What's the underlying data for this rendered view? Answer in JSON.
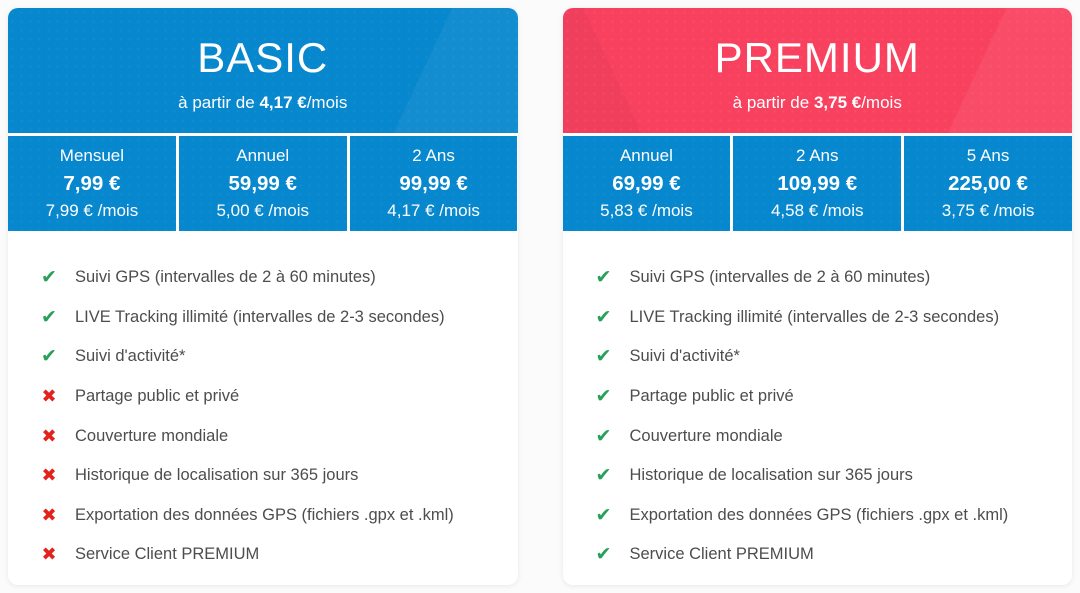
{
  "colors": {
    "blue": "#0787cd",
    "pink": "#f8415f",
    "green": "#27a05a",
    "red": "#e2231d",
    "text": "#4d4d4d",
    "page_bg": "#fbfbfb"
  },
  "icons": {
    "check": "✔",
    "cross": "✖"
  },
  "plans": [
    {
      "id": "basic",
      "name": "BASIC",
      "tagline": {
        "prefix": "à partir de ",
        "price": "4,17 €",
        "suffix": "/mois"
      },
      "tiers": [
        {
          "period": "Mensuel",
          "price": "7,99 €",
          "monthly": "7,99 € /mois"
        },
        {
          "period": "Annuel",
          "price": "59,99 €",
          "monthly": "5,00 € /mois"
        },
        {
          "period": "2 Ans",
          "price": "99,99 €",
          "monthly": "4,17 € /mois"
        }
      ],
      "features": [
        {
          "label": "Suivi GPS (intervalles de 2 à 60 minutes)",
          "included": true
        },
        {
          "label": "LIVE Tracking illimité (intervalles de 2-3 secondes)",
          "included": true
        },
        {
          "label": "Suivi d'activité*",
          "included": true
        },
        {
          "label": "Partage public et privé",
          "included": false
        },
        {
          "label": "Couverture mondiale",
          "included": false
        },
        {
          "label": "Historique de localisation sur 365 jours",
          "included": false
        },
        {
          "label": "Exportation des données GPS (fichiers .gpx et .kml)",
          "included": false
        },
        {
          "label": "Service Client PREMIUM",
          "included": false
        }
      ]
    },
    {
      "id": "premium",
      "name": "PREMIUM",
      "tagline": {
        "prefix": "à partir de ",
        "price": "3,75 €",
        "suffix": "/mois"
      },
      "tiers": [
        {
          "period": "Annuel",
          "price": "69,99 €",
          "monthly": "5,83 € /mois"
        },
        {
          "period": "2 Ans",
          "price": "109,99 €",
          "monthly": "4,58 € /mois"
        },
        {
          "period": "5 Ans",
          "price": "225,00 €",
          "monthly": "3,75 € /mois"
        }
      ],
      "features": [
        {
          "label": "Suivi GPS (intervalles de 2 à 60 minutes)",
          "included": true
        },
        {
          "label": "LIVE Tracking illimité (intervalles de 2-3 secondes)",
          "included": true
        },
        {
          "label": "Suivi d'activité*",
          "included": true
        },
        {
          "label": "Partage public et privé",
          "included": true
        },
        {
          "label": "Couverture mondiale",
          "included": true
        },
        {
          "label": "Historique de localisation sur 365 jours",
          "included": true
        },
        {
          "label": "Exportation des données GPS (fichiers .gpx et .kml)",
          "included": true
        },
        {
          "label": "Service Client PREMIUM",
          "included": true
        }
      ]
    }
  ]
}
